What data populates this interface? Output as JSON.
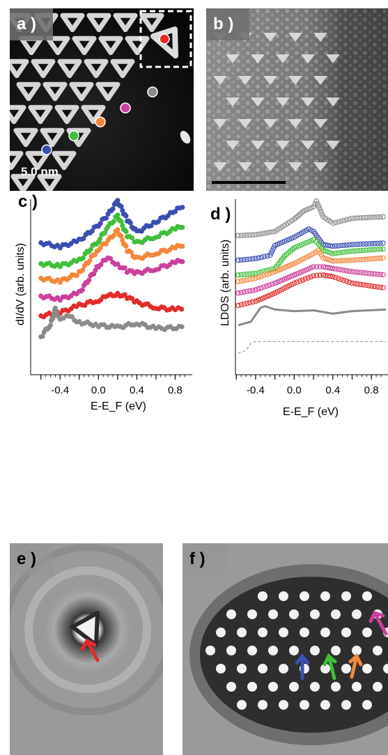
{
  "panels": {
    "a": {
      "label": "a )",
      "scale_bar": "5.0  nm"
    },
    "b": {
      "label": "b )"
    },
    "c": {
      "label": "c )"
    },
    "d": {
      "label": "d )"
    },
    "e": {
      "label": "e )"
    },
    "f": {
      "label": "f )"
    }
  },
  "colors": {
    "blue": "#3a4fb0",
    "green": "#3fbf3a",
    "orange": "#f4873a",
    "magenta": "#cc3f9c",
    "red": "#e32b2b",
    "gray": "#8a8a8a"
  },
  "chart_data": [
    {
      "panel": "c",
      "type": "scatter",
      "xlabel": "E-E_F (eV)",
      "ylabel": "dI/dV (arb. units)",
      "xlim": [
        -0.62,
        0.92
      ],
      "xticks": [
        "-0.4",
        "0.0",
        "0.4",
        "0.8"
      ],
      "yticks_shown": false,
      "series": [
        {
          "color": "blue",
          "x": [
            -0.6,
            -0.4,
            -0.2,
            0.0,
            0.1,
            0.2,
            0.3,
            0.4,
            0.6,
            0.8,
            0.9
          ],
          "y": [
            0.93,
            0.89,
            0.95,
            1.1,
            1.2,
            1.33,
            1.15,
            1.03,
            1.13,
            1.23,
            1.3
          ]
        },
        {
          "color": "green",
          "x": [
            -0.6,
            -0.4,
            -0.2,
            0.0,
            0.1,
            0.2,
            0.3,
            0.4,
            0.6,
            0.8,
            0.9
          ],
          "y": [
            0.73,
            0.71,
            0.76,
            0.95,
            1.08,
            1.19,
            1.0,
            0.93,
            0.99,
            1.06,
            1.1
          ]
        },
        {
          "color": "orange",
          "x": [
            -0.6,
            -0.4,
            -0.2,
            0.0,
            0.1,
            0.2,
            0.3,
            0.4,
            0.6,
            0.8,
            0.9
          ],
          "y": [
            0.59,
            0.56,
            0.64,
            0.87,
            0.95,
            1.05,
            0.86,
            0.78,
            0.83,
            0.88,
            0.92
          ]
        },
        {
          "color": "magenta",
          "x": [
            -0.6,
            -0.4,
            -0.2,
            0.0,
            0.1,
            0.2,
            0.3,
            0.4,
            0.6,
            0.8,
            0.9
          ],
          "y": [
            0.42,
            0.39,
            0.45,
            0.71,
            0.78,
            0.72,
            0.66,
            0.64,
            0.68,
            0.74,
            0.77
          ]
        },
        {
          "color": "red",
          "x": [
            -0.6,
            -0.4,
            -0.2,
            0.0,
            0.1,
            0.2,
            0.3,
            0.4,
            0.6,
            0.8,
            0.9
          ],
          "y": [
            0.23,
            0.26,
            0.33,
            0.38,
            0.42,
            0.44,
            0.41,
            0.36,
            0.31,
            0.29,
            0.3
          ]
        },
        {
          "color": "gray",
          "x": [
            -0.6,
            -0.5,
            -0.45,
            -0.4,
            -0.3,
            -0.2,
            0.0,
            0.2,
            0.4,
            0.6,
            0.9
          ],
          "y": [
            0.03,
            0.15,
            0.29,
            0.21,
            0.22,
            0.17,
            0.14,
            0.12,
            0.16,
            0.11,
            0.12
          ]
        }
      ]
    },
    {
      "panel": "d",
      "type": "line",
      "xlabel": "E-E_F (eV)",
      "ylabel": "LDOS (arb. units)",
      "xlim": [
        -0.58,
        0.95
      ],
      "xticks": [
        "-0.4",
        "0.0",
        "0.4",
        "0.8"
      ],
      "yticks_shown": false,
      "series": [
        {
          "color": "gray",
          "style": "open-circles",
          "x": [
            -0.58,
            -0.4,
            -0.2,
            0.0,
            0.1,
            0.2,
            0.23,
            0.3,
            0.4,
            0.6,
            0.95
          ],
          "y": [
            1.1,
            1.11,
            1.15,
            1.3,
            1.4,
            1.45,
            1.52,
            1.33,
            1.25,
            1.31,
            1.33
          ]
        },
        {
          "color": "blue",
          "style": "open-circles",
          "x": [
            -0.58,
            -0.4,
            -0.25,
            -0.2,
            0.0,
            0.15,
            0.2,
            0.3,
            0.4,
            0.6,
            0.95
          ],
          "y": [
            0.8,
            0.82,
            0.86,
            0.98,
            1.08,
            1.18,
            1.15,
            0.99,
            0.97,
            0.99,
            1.01
          ]
        },
        {
          "color": "green",
          "style": "open-circles",
          "x": [
            -0.58,
            -0.4,
            -0.2,
            -0.1,
            0.0,
            0.2,
            0.25,
            0.3,
            0.4,
            0.6,
            0.95
          ],
          "y": [
            0.62,
            0.64,
            0.7,
            0.85,
            0.95,
            1.05,
            1.0,
            0.92,
            0.88,
            0.91,
            0.94
          ]
        },
        {
          "color": "orange",
          "style": "open-circles",
          "x": [
            -0.58,
            -0.4,
            -0.2,
            0.0,
            0.2,
            0.25,
            0.3,
            0.4,
            0.6,
            0.95
          ],
          "y": [
            0.54,
            0.58,
            0.66,
            0.76,
            0.88,
            0.92,
            0.83,
            0.79,
            0.8,
            0.83
          ]
        },
        {
          "color": "magenta",
          "style": "open-circles",
          "x": [
            -0.58,
            -0.4,
            -0.2,
            0.0,
            0.2,
            0.3,
            0.4,
            0.6,
            0.95
          ],
          "y": [
            0.4,
            0.44,
            0.52,
            0.62,
            0.72,
            0.72,
            0.7,
            0.66,
            0.62
          ]
        },
        {
          "color": "red",
          "style": "open-circles",
          "x": [
            -0.58,
            -0.4,
            -0.2,
            0.0,
            0.2,
            0.3,
            0.4,
            0.6,
            0.95
          ],
          "y": [
            0.25,
            0.3,
            0.4,
            0.52,
            0.61,
            0.62,
            0.6,
            0.52,
            0.46
          ]
        },
        {
          "color": "gray",
          "style": "solid",
          "x": [
            -0.58,
            -0.45,
            -0.35,
            -0.3,
            -0.2,
            0.0,
            0.2,
            0.3,
            0.4,
            0.6,
            0.95
          ],
          "y": [
            0.01,
            0.05,
            0.22,
            0.24,
            0.2,
            0.18,
            0.19,
            0.17,
            0.15,
            0.18,
            0.2
          ]
        },
        {
          "color": "gray",
          "style": "dashed",
          "x": [
            -0.58,
            -0.5,
            -0.45,
            -0.4,
            0.0,
            0.4,
            0.95
          ],
          "y": [
            -0.33,
            -0.3,
            -0.21,
            -0.19,
            -0.19,
            -0.19,
            -0.19
          ]
        }
      ]
    }
  ]
}
